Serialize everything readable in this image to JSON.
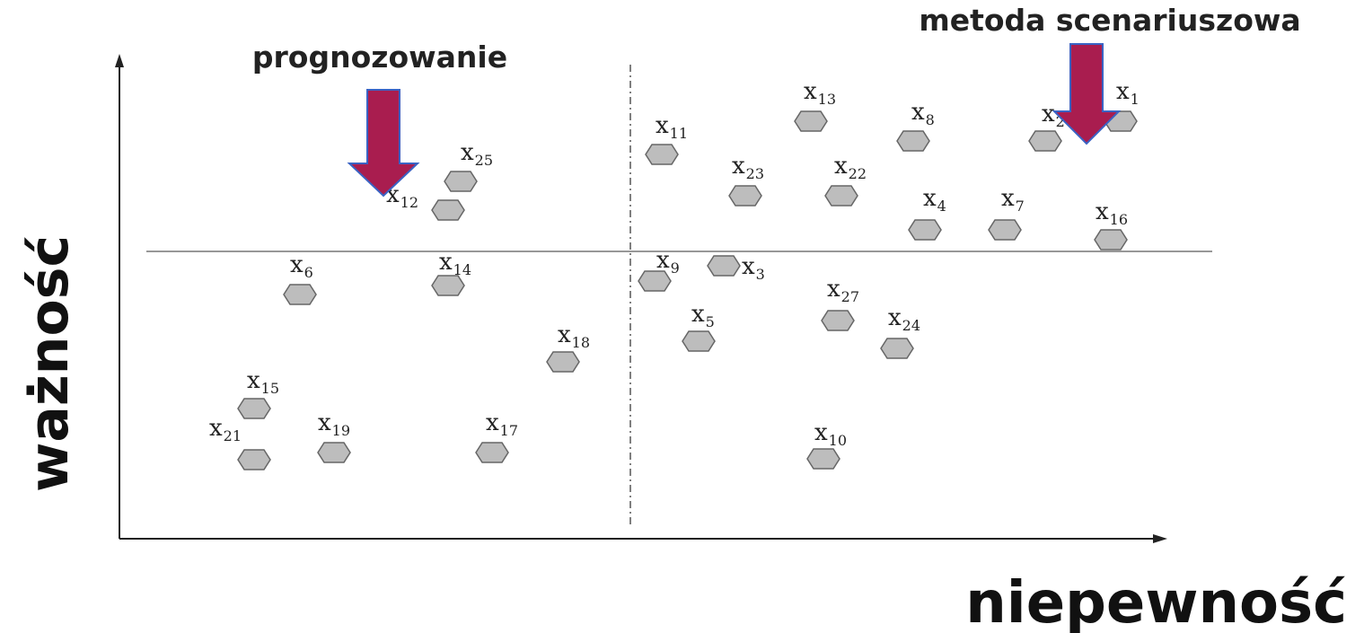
{
  "chart_data": {
    "type": "scatter",
    "xlabel": "niepewność",
    "ylabel": "ważność",
    "points": [
      {
        "label": "x",
        "sub": "1"
      },
      {
        "label": "x",
        "sub": "2"
      },
      {
        "label": "x",
        "sub": "3"
      },
      {
        "label": "x",
        "sub": "4"
      },
      {
        "label": "x",
        "sub": "5"
      },
      {
        "label": "x",
        "sub": "6"
      },
      {
        "label": "x",
        "sub": "7"
      },
      {
        "label": "x",
        "sub": "8"
      },
      {
        "label": "x",
        "sub": "9"
      },
      {
        "label": "x",
        "sub": "10"
      },
      {
        "label": "x",
        "sub": "11"
      },
      {
        "label": "x",
        "sub": "12"
      },
      {
        "label": "x",
        "sub": "13"
      },
      {
        "label": "x",
        "sub": "14"
      },
      {
        "label": "x",
        "sub": "15"
      },
      {
        "label": "x",
        "sub": "16"
      },
      {
        "label": "x",
        "sub": "17"
      },
      {
        "label": "x",
        "sub": "18"
      },
      {
        "label": "x",
        "sub": "19"
      },
      {
        "label": "x",
        "sub": "21"
      },
      {
        "label": "x",
        "sub": "22"
      },
      {
        "label": "x",
        "sub": "23"
      },
      {
        "label": "x",
        "sub": "24"
      },
      {
        "label": "x",
        "sub": "25"
      },
      {
        "label": "x",
        "sub": "27"
      }
    ]
  },
  "callouts": {
    "forecasting": "prognozowanie",
    "scenario": "metoda scenariuszowa"
  },
  "colors": {
    "marker_fill": "#bdbdbd",
    "marker_stroke": "#666666",
    "arrow_fill": "#a91d4f",
    "arrow_stroke": "#3a63c4",
    "axis": "#222222"
  }
}
